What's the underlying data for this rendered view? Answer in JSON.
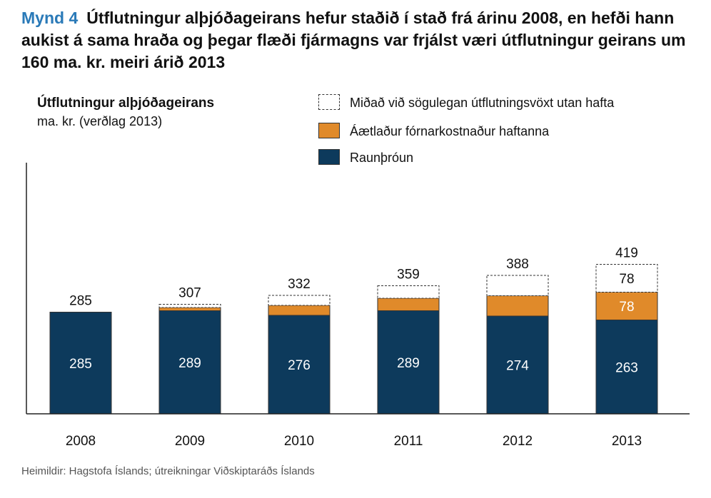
{
  "figure": {
    "label": "Mynd 4",
    "title": "Útflutningur alþjóðageirans hefur staðið í stað frá árinu 2008, en hefði hann aukist á sama hraða og þegar flæði fjármagns var frjálst væri útflutningur geirans um 160 ma. kr. meiri árið 2013"
  },
  "source": "Heimildir: Hagstofa Íslands; útreikningar Viðskiptaráðs Íslands",
  "colors": {
    "actual": "#0d3a5c",
    "cost": "#e08a2a",
    "historical": "#ffffff"
  },
  "chart_data": {
    "type": "bar",
    "stacked": true,
    "title": "Útflutningur alþjóðageirans",
    "ylabel": "ma. kr. (verðlag 2013)",
    "categories": [
      "2008",
      "2009",
      "2010",
      "2011",
      "2012",
      "2013"
    ],
    "series": [
      {
        "name": "Raunþróun",
        "values": [
          285,
          289,
          276,
          289,
          274,
          263
        ],
        "labels": [
          "285",
          "289",
          "276",
          "289",
          "274",
          "263"
        ]
      },
      {
        "name": "Áætlaður fórnarkostnaður haftanna",
        "values": [
          0,
          9,
          28,
          35,
          57,
          78
        ],
        "labels": [
          "",
          "",
          "",
          "",
          "",
          "78"
        ]
      },
      {
        "name": "Miðað við sögulegan útflutningsvöxt utan hafta",
        "values": [
          0,
          9,
          28,
          35,
          57,
          78
        ],
        "labels": [
          "",
          "",
          "",
          "",
          "",
          "78"
        ]
      }
    ],
    "totals": [
      "285",
      "307",
      "332",
      "359",
      "388",
      "419"
    ],
    "ylim": [
      0,
      580
    ],
    "grid": false,
    "legend_position": "top-right"
  }
}
